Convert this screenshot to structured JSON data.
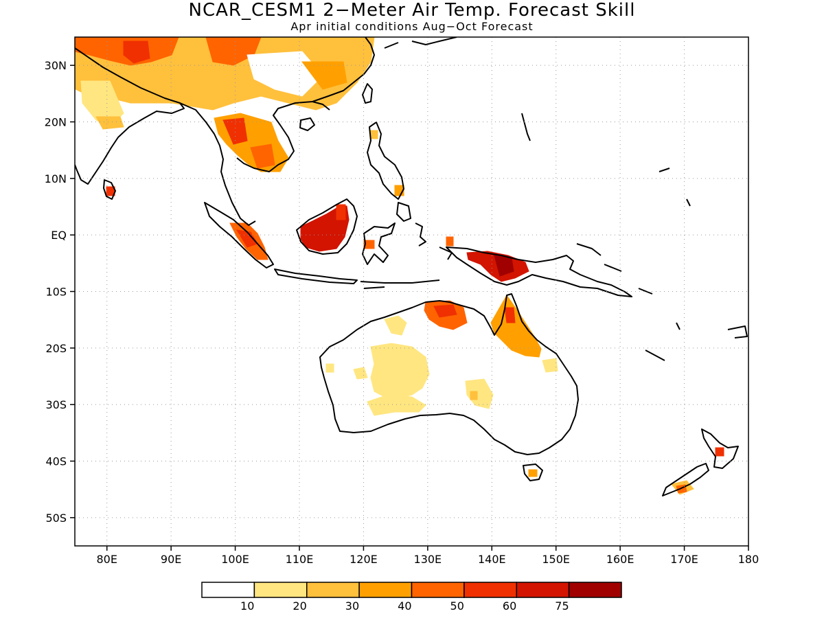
{
  "title": "NCAR_CESM1 2−Meter Air Temp. Forecast Skill",
  "subtitle": "Apr initial conditions  Aug−Oct Forecast",
  "map": {
    "lon_range": [
      75,
      180
    ],
    "lat_range": [
      -55,
      35
    ],
    "grid": "dotted"
  },
  "axis": {
    "x_ticks": [
      {
        "value": 80,
        "label": "80E"
      },
      {
        "value": 90,
        "label": "90E"
      },
      {
        "value": 100,
        "label": "100E"
      },
      {
        "value": 110,
        "label": "110E"
      },
      {
        "value": 120,
        "label": "120E"
      },
      {
        "value": 130,
        "label": "130E"
      },
      {
        "value": 140,
        "label": "140E"
      },
      {
        "value": 150,
        "label": "150E"
      },
      {
        "value": 160,
        "label": "160E"
      },
      {
        "value": 170,
        "label": "170E"
      },
      {
        "value": 180,
        "label": "180"
      }
    ],
    "y_ticks": [
      {
        "value": 30,
        "label": "30N"
      },
      {
        "value": 20,
        "label": "20N"
      },
      {
        "value": 10,
        "label": "10N"
      },
      {
        "value": 0,
        "label": "EQ"
      },
      {
        "value": -10,
        "label": "10S"
      },
      {
        "value": -20,
        "label": "20S"
      },
      {
        "value": -30,
        "label": "30S"
      },
      {
        "value": -40,
        "label": "40S"
      },
      {
        "value": -50,
        "label": "50S"
      }
    ]
  },
  "colorbar": {
    "colors": [
      "#ffffff",
      "#ffe680",
      "#ffc03c",
      "#ffa000",
      "#ff6400",
      "#f03000",
      "#d21400",
      "#a00000"
    ],
    "labels": [
      "10",
      "20",
      "30",
      "40",
      "50",
      "60",
      "75"
    ]
  },
  "colors": {
    "coastline": "#000000",
    "grid": "#999999"
  }
}
